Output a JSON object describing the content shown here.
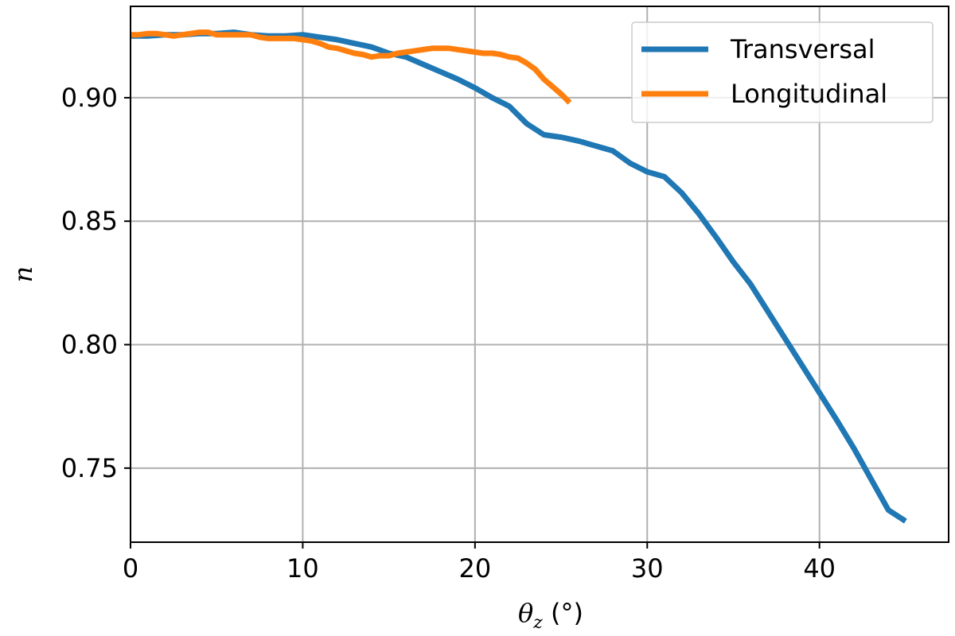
{
  "chart_data": {
    "type": "line",
    "title": "",
    "xlabel_main": "θ",
    "xlabel_sub": "z",
    "xlabel_unit": " (°)",
    "ylabel": "n",
    "xlim": [
      0,
      47.5
    ],
    "ylim": [
      0.72,
      0.937
    ],
    "xticks": [
      0,
      10,
      20,
      30,
      40
    ],
    "yticks": [
      0.75,
      0.8,
      0.85,
      0.9
    ],
    "xtick_labels": [
      "0",
      "10",
      "20",
      "30",
      "40"
    ],
    "ytick_labels": [
      "0.75",
      "0.80",
      "0.85",
      "0.90"
    ],
    "grid": true,
    "legend_position": "top-right",
    "series": [
      {
        "name": "Transversal",
        "color": "#1f77b4",
        "x": [
          0,
          1,
          2,
          3,
          4,
          5,
          6,
          7,
          8,
          9,
          10,
          11,
          12,
          13,
          14,
          15,
          16,
          17,
          18,
          19,
          20,
          21,
          22,
          23,
          24,
          25,
          26,
          27,
          28,
          29,
          30,
          31,
          32,
          33,
          34,
          35,
          36,
          37,
          38,
          39,
          40,
          41,
          42,
          43,
          44,
          45
        ],
        "y": [
          0.925,
          0.925,
          0.9255,
          0.9255,
          0.926,
          0.926,
          0.9265,
          0.9255,
          0.925,
          0.925,
          0.9255,
          0.9245,
          0.9235,
          0.922,
          0.9205,
          0.918,
          0.9165,
          0.9135,
          0.9105,
          0.9075,
          0.904,
          0.9,
          0.8965,
          0.8895,
          0.885,
          0.884,
          0.8825,
          0.8805,
          0.8785,
          0.8735,
          0.87,
          0.868,
          0.8615,
          0.853,
          0.8435,
          0.8335,
          0.8245,
          0.8135,
          0.8025,
          0.7915,
          0.7805,
          0.7695,
          0.758,
          0.7455,
          0.733,
          0.7285
        ]
      },
      {
        "name": "Longitudinal",
        "color": "#ff7f0e",
        "x": [
          0,
          0.5,
          1,
          1.5,
          2,
          2.5,
          3,
          3.5,
          4,
          4.5,
          5,
          5.5,
          6,
          6.5,
          7,
          7.5,
          8,
          8.5,
          9,
          9.5,
          10,
          10.5,
          11,
          11.5,
          12,
          12.5,
          13,
          13.5,
          14,
          14.5,
          15,
          15.5,
          16,
          16.5,
          17,
          17.5,
          18,
          18.5,
          19,
          19.5,
          20,
          20.5,
          21,
          21.5,
          22,
          22.5,
          23,
          23.5,
          24,
          24.5,
          25,
          25.5
        ],
        "y": [
          0.9255,
          0.9255,
          0.926,
          0.926,
          0.9255,
          0.925,
          0.9255,
          0.926,
          0.9265,
          0.9265,
          0.9255,
          0.9255,
          0.9255,
          0.9255,
          0.9255,
          0.9245,
          0.924,
          0.924,
          0.924,
          0.924,
          0.9235,
          0.923,
          0.922,
          0.9205,
          0.92,
          0.919,
          0.918,
          0.9175,
          0.9165,
          0.917,
          0.917,
          0.918,
          0.9185,
          0.919,
          0.9195,
          0.92,
          0.92,
          0.92,
          0.9195,
          0.919,
          0.9185,
          0.918,
          0.918,
          0.9175,
          0.9165,
          0.916,
          0.914,
          0.9115,
          0.9075,
          0.9045,
          0.9015,
          0.898
        ]
      }
    ]
  }
}
